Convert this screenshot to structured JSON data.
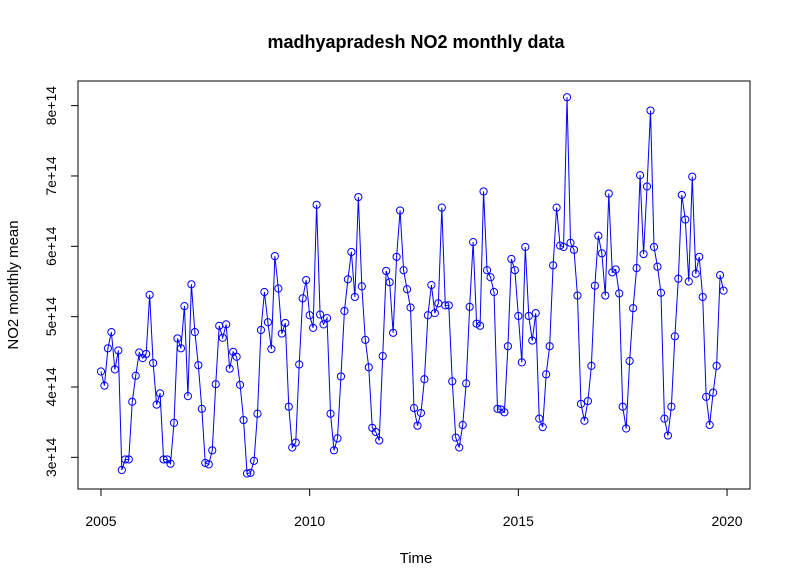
{
  "chart_data": {
    "type": "line",
    "title": "madhyapradesh NO2 monthly data",
    "xlabel": "Time",
    "ylabel": "NO2 monthly mean",
    "xlim": [
      2004.45,
      2020.55
    ],
    "ylim": [
      255000000000000.0,
      835000000000000.0
    ],
    "x_ticks": [
      2005,
      2010,
      2015,
      2020
    ],
    "x_tick_labels": [
      "2005",
      "2010",
      "2015",
      "2020"
    ],
    "y_ticks": [
      300000000000000.0,
      400000000000000.0,
      500000000000000.0,
      600000000000000.0,
      700000000000000.0,
      800000000000000.0
    ],
    "y_tick_labels": [
      "3e+14",
      "4e+14",
      "5e+14",
      "6e+14",
      "7e+14",
      "8e+14"
    ],
    "grid": false,
    "series": [
      {
        "color": "#0000ff",
        "marker": "open-circle",
        "x_start": 2005,
        "x_step_months": 1,
        "values": [
          422000000000000.0,
          402000000000000.0,
          455000000000000.0,
          478000000000000.0,
          425000000000000.0,
          452000000000000.0,
          282000000000000.0,
          297000000000000.0,
          297000000000000.0,
          379000000000000.0,
          416000000000000.0,
          449000000000000.0,
          441000000000000.0,
          447000000000000.0,
          531000000000000.0,
          434000000000000.0,
          375000000000000.0,
          391000000000000.0,
          297000000000000.0,
          297000000000000.0,
          291000000000000.0,
          349000000000000.0,
          469000000000000.0,
          455000000000000.0,
          515000000000000.0,
          387000000000000.0,
          546000000000000.0,
          478000000000000.0,
          431000000000000.0,
          369000000000000.0,
          292000000000000.0,
          290000000000000.0,
          310000000000000.0,
          404000000000000.0,
          487000000000000.0,
          470000000000000.0,
          489000000000000.0,
          426000000000000.0,
          450000000000000.0,
          443000000000000.0,
          403000000000000.0,
          353000000000000.0,
          277000000000000.0,
          278000000000000.0,
          295000000000000.0,
          362000000000000.0,
          481000000000000.0,
          535000000000000.0,
          492000000000000.0,
          454000000000000.0,
          586000000000000.0,
          540000000000000.0,
          476000000000000.0,
          491000000000000.0,
          372000000000000.0,
          314000000000000.0,
          321000000000000.0,
          432000000000000.0,
          526000000000000.0,
          552000000000000.0,
          502000000000000.0,
          484000000000000.0,
          659000000000000.0,
          503000000000000.0,
          489000000000000.0,
          498000000000000.0,
          362000000000000.0,
          310000000000000.0,
          327000000000000.0,
          415000000000000.0,
          508000000000000.0,
          553000000000000.0,
          592000000000000.0,
          528000000000000.0,
          670000000000000.0,
          543000000000000.0,
          467000000000000.0,
          428000000000000.0,
          342000000000000.0,
          336000000000000.0,
          324000000000000.0,
          444000000000000.0,
          565000000000000.0,
          549000000000000.0,
          477000000000000.0,
          585000000000000.0,
          651000000000000.0,
          566000000000000.0,
          539000000000000.0,
          513000000000000.0,
          370000000000000.0,
          345000000000000.0,
          363000000000000.0,
          411000000000000.0,
          502000000000000.0,
          545000000000000.0,
          505000000000000.0,
          519000000000000.0,
          655000000000000.0,
          516000000000000.0,
          516000000000000.0,
          408000000000000.0,
          328000000000000.0,
          314000000000000.0,
          346000000000000.0,
          405000000000000.0,
          514000000000000.0,
          606000000000000.0,
          490000000000000.0,
          487000000000000.0,
          678000000000000.0,
          566000000000000.0,
          556000000000000.0,
          535000000000000.0,
          369000000000000.0,
          368000000000000.0,
          364000000000000.0,
          458000000000000.0,
          582000000000000.0,
          566000000000000.0,
          501000000000000.0,
          435000000000000.0,
          599000000000000.0,
          501000000000000.0,
          466000000000000.0,
          505000000000000.0,
          355000000000000.0,
          343000000000000.0,
          418000000000000.0,
          458000000000000.0,
          573000000000000.0,
          655000000000000.0,
          601000000000000.0,
          599000000000000.0,
          812000000000000.0,
          605000000000000.0,
          595000000000000.0,
          530000000000000.0,
          376000000000000.0,
          352000000000000.0,
          380000000000000.0,
          430000000000000.0,
          544000000000000.0,
          615000000000000.0,
          590000000000000.0,
          530000000000000.0,
          675000000000000.0,
          563000000000000.0,
          567000000000000.0,
          533000000000000.0,
          372000000000000.0,
          341000000000000.0,
          437000000000000.0,
          512000000000000.0,
          569000000000000.0,
          701000000000000.0,
          589000000000000.0,
          685000000000000.0,
          793000000000000.0,
          599000000000000.0,
          571000000000000.0,
          534000000000000.0,
          355000000000000.0,
          331000000000000.0,
          372000000000000.0,
          472000000000000.0,
          554000000000000.0,
          673000000000000.0,
          638000000000000.0,
          550000000000000.0,
          699000000000000.0,
          561000000000000.0,
          585000000000000.0,
          528000000000000.0,
          386000000000000.0,
          346000000000000.0,
          392000000000000.0,
          430000000000000.0,
          559000000000000.0,
          537000000000000.0
        ]
      }
    ]
  }
}
